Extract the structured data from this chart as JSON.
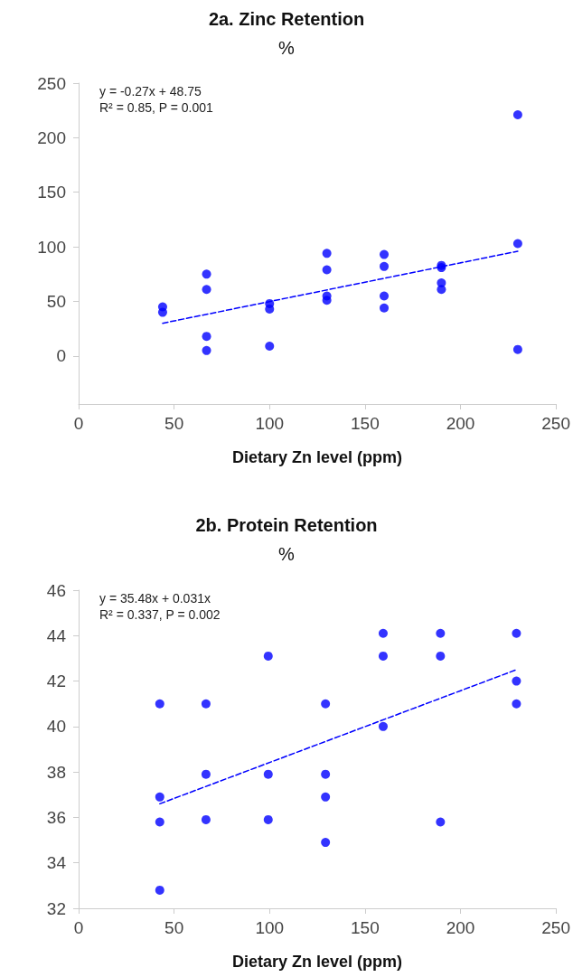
{
  "chart_data": [
    {
      "type": "scatter",
      "title": "2a. Zinc Retention",
      "subtitle": "%",
      "xlabel": "Dietary Zn level (ppm)",
      "annotations": [
        "y = -0.27x + 48.75",
        "R² = 0.85, P = 0.001"
      ],
      "xlim": [
        0,
        250
      ],
      "xticks": [
        0,
        50,
        100,
        150,
        200,
        250
      ],
      "ylim": [
        -44,
        250
      ],
      "yticks": [
        0,
        50,
        100,
        150,
        200,
        250
      ],
      "grid": false,
      "marker": "circle",
      "series": [
        {
          "color": "#0000ff",
          "x": [
            44,
            44,
            67,
            67,
            67,
            67,
            100,
            100,
            100,
            130,
            130,
            130,
            130,
            160,
            160,
            160,
            160,
            190,
            190,
            190,
            190,
            230,
            230,
            230
          ],
          "values": [
            45,
            40,
            75,
            61,
            18,
            5,
            48,
            43,
            9,
            94,
            79,
            55,
            51,
            93,
            82,
            55,
            44,
            83,
            81,
            67,
            61,
            221,
            103,
            6
          ]
        },
        {
          "type": "line",
          "color": "#0000ff",
          "line_style": "dashed",
          "marker": "none",
          "x": [
            44,
            230
          ],
          "values": [
            30,
            96
          ]
        }
      ]
    },
    {
      "type": "scatter",
      "title": "2b. Protein Retention",
      "subtitle": "%",
      "xlabel": "Dietary Zn level (ppm)",
      "annotations": [
        "y = 35.48x + 0.031x",
        "R² = 0.337, P = 0.002"
      ],
      "xlim": [
        0,
        250
      ],
      "xticks": [
        0,
        50,
        100,
        150,
        200,
        250
      ],
      "ylim": [
        32,
        46
      ],
      "yticks": [
        32,
        34,
        36,
        38,
        40,
        42,
        44,
        46
      ],
      "grid": false,
      "marker": "circle",
      "series": [
        {
          "color": "#0000ff",
          "x": [
            42.5,
            42.5,
            42.5,
            42.5,
            66.7,
            66.7,
            66.7,
            99.3,
            99.3,
            99.3,
            129.3,
            129.3,
            129.3,
            129.3,
            159.5,
            159.5,
            159.5,
            189.5,
            189.5,
            189.5,
            229.3,
            229.3,
            229.3
          ],
          "values": [
            41,
            36.9,
            35.8,
            32.8,
            41,
            37.9,
            35.9,
            43.1,
            37.9,
            35.9,
            41,
            37.9,
            36.9,
            34.9,
            44.1,
            43.1,
            40,
            44.1,
            43.1,
            35.8,
            44.1,
            42,
            41
          ]
        },
        {
          "type": "line",
          "color": "#0000ff",
          "line_style": "dashed",
          "marker": "none",
          "x": [
            42.5,
            229.3
          ],
          "values": [
            36.6,
            42.5
          ]
        }
      ]
    }
  ]
}
